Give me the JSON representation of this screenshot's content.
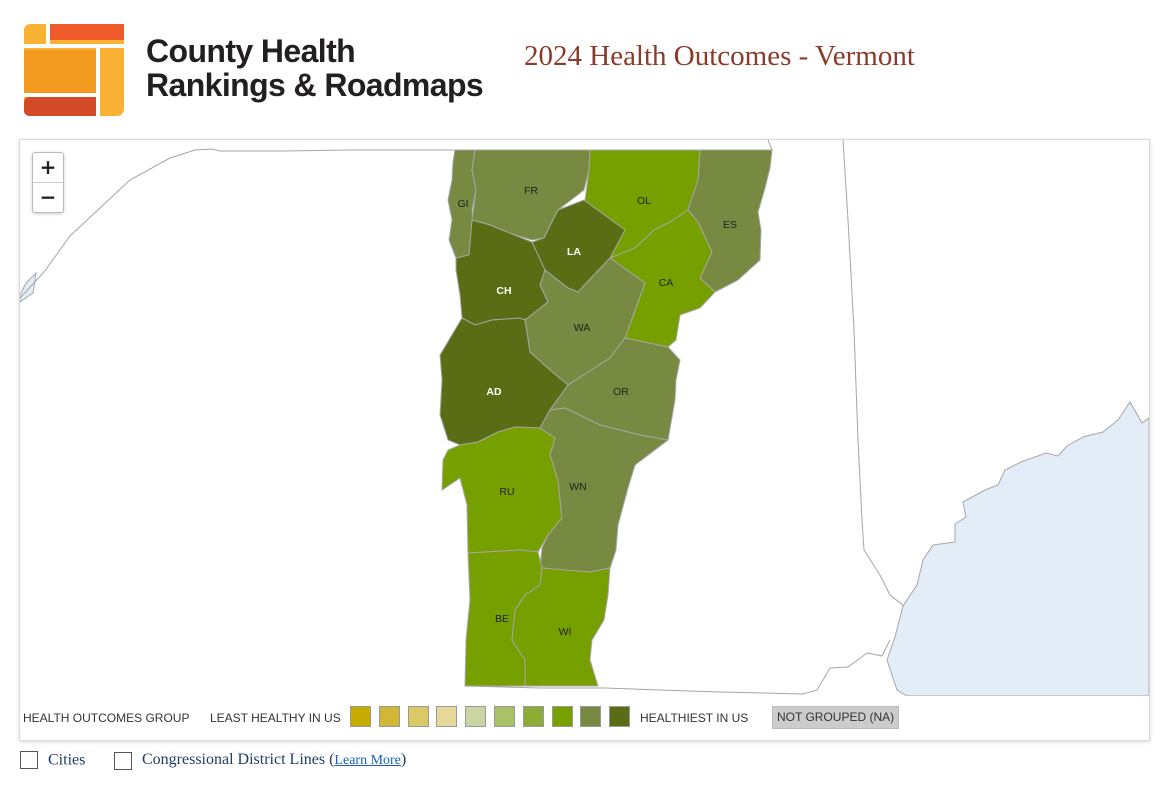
{
  "brand": {
    "line1": "County Health",
    "line2": "Rankings & Roadmaps"
  },
  "page_title": "2024 Health Outcomes - Vermont",
  "zoom": {
    "in_label": "+",
    "out_label": "−"
  },
  "colors": {
    "title": "#8a3b2a",
    "water": "#e3edf7",
    "border": "#a6a6a6",
    "logo_orange": "#f39a20",
    "logo_light": "#f9b233",
    "logo_red": "#d34a26",
    "logo_redtop": "#ee5a2a"
  },
  "legend": {
    "group_label": "HEALTH OUTCOMES GROUP",
    "least_label": "LEAST HEALTHY IN US",
    "healthiest_label": "HEALTHIEST IN US",
    "na_label": "NOT GROUPED (NA)",
    "swatches": [
      "#c6ac00",
      "#d1b734",
      "#dbc866",
      "#e6d999",
      "#c9d6a1",
      "#a9c268",
      "#8dac35",
      "#76a000",
      "#788a42",
      "#5b6d14"
    ]
  },
  "counties": [
    {
      "abbr": "GI",
      "group": 9,
      "fill": "#788a42",
      "label_color": "#222"
    },
    {
      "abbr": "FR",
      "group": 9,
      "fill": "#788a42",
      "label_color": "#222"
    },
    {
      "abbr": "OL",
      "group": 8,
      "fill": "#76a000",
      "label_color": "#222"
    },
    {
      "abbr": "ES",
      "group": 9,
      "fill": "#788a42",
      "label_color": "#222"
    },
    {
      "abbr": "LA",
      "group": 10,
      "fill": "#5b6d14",
      "label_color": "#ffffff"
    },
    {
      "abbr": "CH",
      "group": 10,
      "fill": "#5b6d14",
      "label_color": "#ffffff"
    },
    {
      "abbr": "CA",
      "group": 8,
      "fill": "#76a000",
      "label_color": "#222"
    },
    {
      "abbr": "WA",
      "group": 9,
      "fill": "#788a42",
      "label_color": "#222"
    },
    {
      "abbr": "AD",
      "group": 10,
      "fill": "#5b6d14",
      "label_color": "#ffffff"
    },
    {
      "abbr": "OR",
      "group": 9,
      "fill": "#788a42",
      "label_color": "#222"
    },
    {
      "abbr": "RU",
      "group": 8,
      "fill": "#76a000",
      "label_color": "#222"
    },
    {
      "abbr": "WN",
      "group": 9,
      "fill": "#788a42",
      "label_color": "#222"
    },
    {
      "abbr": "BE",
      "group": 8,
      "fill": "#76a000",
      "label_color": "#222"
    },
    {
      "abbr": "WI",
      "group": 8,
      "fill": "#76a000",
      "label_color": "#222"
    }
  ],
  "options": {
    "cities_label": "Cities",
    "district_label": "Congressional District Lines (",
    "learn_more": "Learn More",
    "close_paren": ")"
  }
}
